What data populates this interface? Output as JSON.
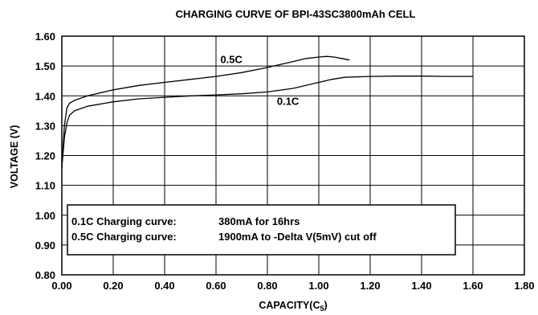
{
  "chart_data": {
    "type": "line",
    "title": "CHARGING CURVE OF BPI-43SC3800mAh   CELL",
    "xlabel": "CAPACITY(C5)",
    "ylabel": "VOLTAGE (V)",
    "xlim": [
      0,
      1.8
    ],
    "ylim": [
      0.8,
      1.6
    ],
    "x_ticks": [
      "0.00",
      "0.20",
      "0.40",
      "0.60",
      "0.80",
      "1.00",
      "1.20",
      "1.40",
      "1.60",
      "1.80"
    ],
    "y_ticks": [
      "0.80",
      "0.90",
      "1.00",
      "1.10",
      "1.20",
      "1.30",
      "1.40",
      "1.50",
      "1.60"
    ],
    "grid": true,
    "series": [
      {
        "name": "0.5C",
        "x": [
          0.0,
          0.01,
          0.02,
          0.03,
          0.05,
          0.1,
          0.2,
          0.3,
          0.4,
          0.5,
          0.6,
          0.7,
          0.8,
          0.85,
          0.9,
          0.95,
          1.0,
          1.03,
          1.06,
          1.09,
          1.12
        ],
        "y": [
          1.16,
          1.3,
          1.36,
          1.375,
          1.385,
          1.4,
          1.42,
          1.435,
          1.445,
          1.455,
          1.465,
          1.478,
          1.495,
          1.505,
          1.515,
          1.525,
          1.53,
          1.532,
          1.53,
          1.525,
          1.52
        ]
      },
      {
        "name": "0.1C",
        "x": [
          0.0,
          0.01,
          0.02,
          0.03,
          0.05,
          0.1,
          0.2,
          0.3,
          0.4,
          0.5,
          0.6,
          0.7,
          0.8,
          0.9,
          0.95,
          1.0,
          1.05,
          1.1,
          1.2,
          1.3,
          1.4,
          1.5,
          1.6
        ],
        "y": [
          1.16,
          1.26,
          1.31,
          1.335,
          1.35,
          1.365,
          1.38,
          1.39,
          1.395,
          1.4,
          1.403,
          1.407,
          1.413,
          1.425,
          1.435,
          1.445,
          1.455,
          1.462,
          1.465,
          1.466,
          1.466,
          1.465,
          1.465
        ]
      }
    ],
    "annotations": [
      {
        "label": "0.1C Charging curve:",
        "text": "380mA for 16hrs"
      },
      {
        "label": "0.5C Charging curve:",
        "text": "1900mA to -Delta V(5mV) cut off"
      }
    ]
  }
}
